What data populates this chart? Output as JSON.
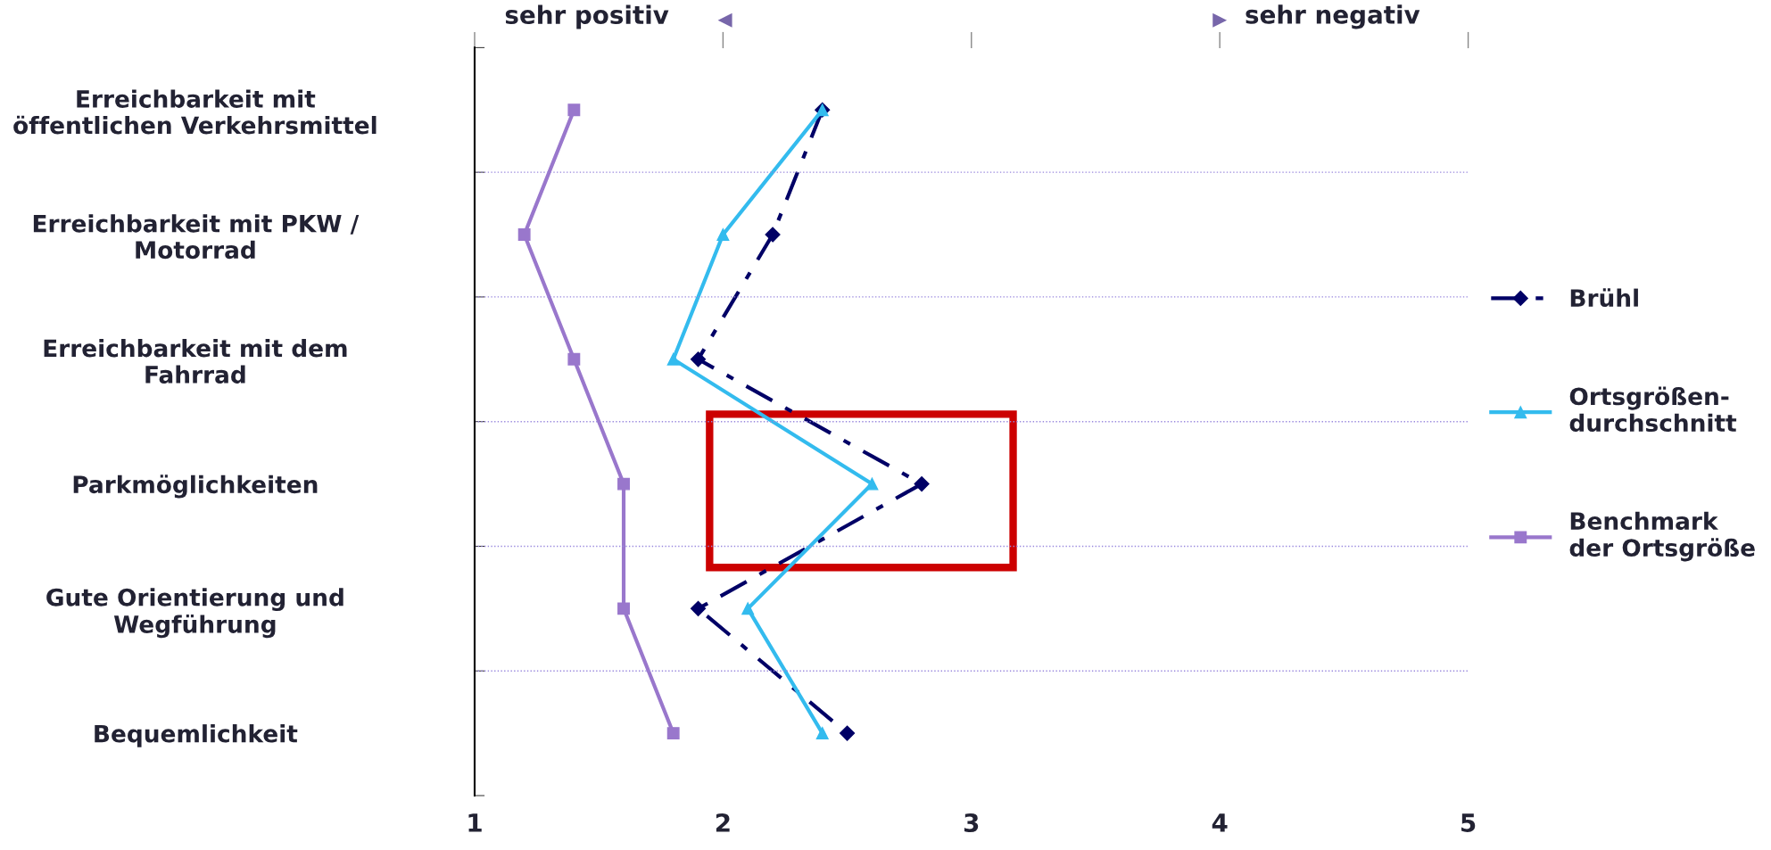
{
  "chart_data": {
    "type": "line",
    "orientation": "horizontal",
    "categories": [
      "Erreichbarkeit mit\nöffentlichen Verkehrsmittel",
      "Erreichbarkeit mit PKW /\nMotorrad",
      "Erreichbarkeit mit dem\nFahrrad",
      "Parkmöglichkeiten",
      "Gute Orientierung und\nWegführung",
      "Bequemlichkeit"
    ],
    "series": [
      {
        "name": "Brühl",
        "color": "#000066",
        "marker": "diamond",
        "line_style": "dashed",
        "values": [
          2.4,
          2.2,
          1.9,
          2.8,
          1.9,
          2.5
        ]
      },
      {
        "name": "Ortsgrößen-\ndurchschnitt",
        "color": "#33bbee",
        "marker": "triangle",
        "line_style": "solid",
        "values": [
          2.4,
          2.0,
          1.8,
          2.6,
          2.1,
          2.4
        ]
      },
      {
        "name": "Benchmark\nder Ortsgröße",
        "color": "#9977cc",
        "marker": "square",
        "line_style": "solid",
        "values": [
          1.4,
          1.2,
          1.4,
          1.6,
          1.6,
          1.8
        ]
      }
    ],
    "xlim": [
      1,
      5
    ],
    "xticks": [
      1,
      2,
      3,
      4,
      5
    ],
    "annotations": [
      "sehr positiv",
      "◀",
      "▶",
      "sehr negativ"
    ],
    "grid": "y",
    "legend": "right"
  }
}
